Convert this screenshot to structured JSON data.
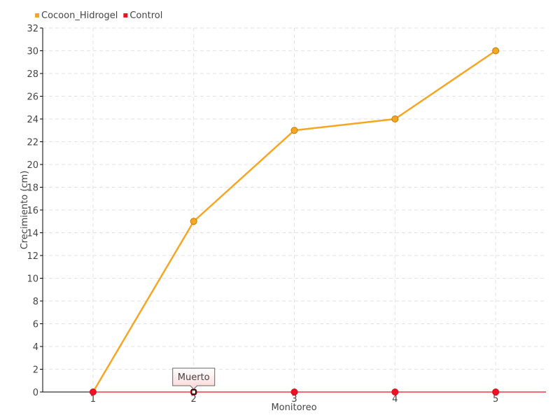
{
  "chart_data": {
    "type": "line",
    "title": "",
    "xlabel": "Monitoreo",
    "ylabel": "Crecimiento (cm)",
    "categories": [
      "1",
      "2",
      "3",
      "4",
      "5"
    ],
    "ylim": [
      0,
      32
    ],
    "ytick_step": 2,
    "grid": true,
    "legend_placement": "top-left",
    "series": [
      {
        "name": "Cocoon_Hidrogel",
        "color": "#f5a623",
        "values": [
          0,
          15,
          23,
          24,
          30
        ]
      },
      {
        "name": "Control",
        "color": "#ee1122",
        "values": [
          0,
          0,
          0,
          0,
          0
        ]
      }
    ],
    "annotations": [
      {
        "text": "Muerto",
        "series": "Control",
        "category": "2"
      }
    ]
  }
}
